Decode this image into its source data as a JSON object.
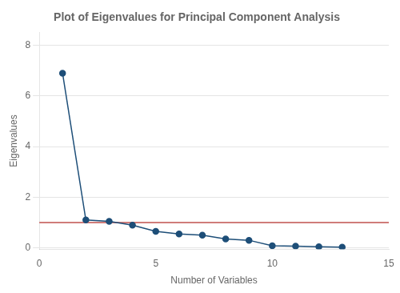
{
  "chart_data": {
    "type": "line",
    "title": "Plot of Eigenvalues for Principal Component Analysis",
    "x_label": "Number of Variables",
    "y_label": "Eigenvalues",
    "x": [
      1,
      2,
      3,
      4,
      5,
      6,
      7,
      8,
      9,
      10,
      11,
      12,
      13
    ],
    "series": [
      {
        "name": "Eigenvalues",
        "color": "#1d4e78",
        "marker": "circle",
        "values": [
          6.9,
          1.1,
          1.05,
          0.9,
          0.65,
          0.55,
          0.5,
          0.35,
          0.3,
          0.08,
          0.07,
          0.04,
          0.03
        ]
      }
    ],
    "reference_line": {
      "y": 1.0,
      "color": "#c0504d"
    },
    "xlim": [
      0,
      15
    ],
    "xticks": [
      0,
      5,
      10,
      15
    ],
    "ylim": [
      -0.05,
      8.5
    ],
    "yticks": [
      0,
      2,
      4,
      6,
      8
    ],
    "grid": "y",
    "legend": false
  }
}
